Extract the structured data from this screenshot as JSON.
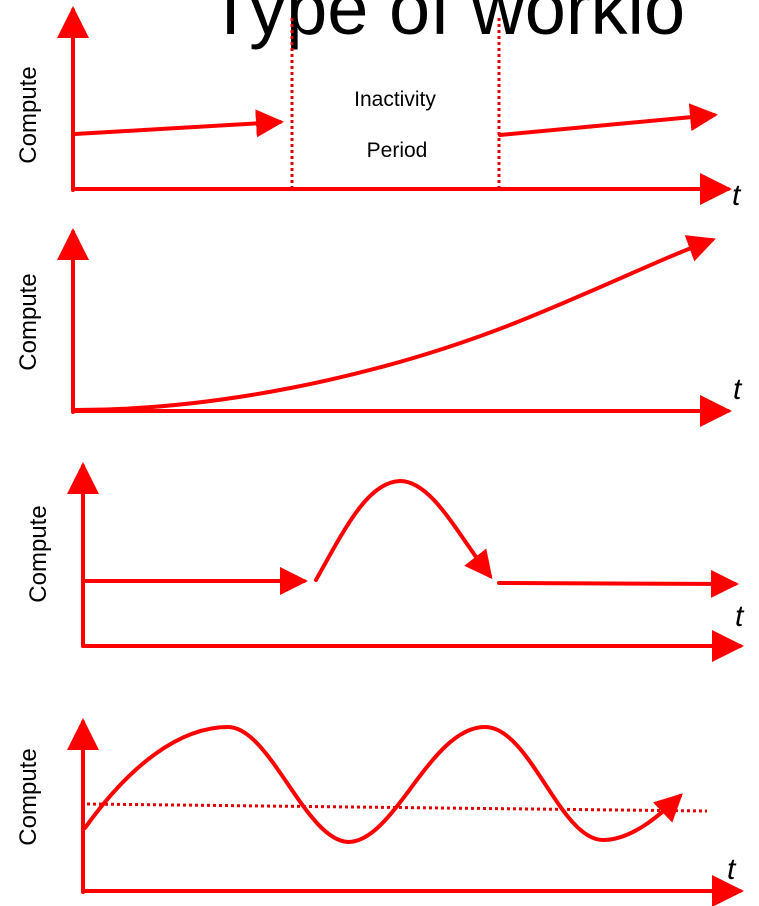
{
  "title": "Type of worklo",
  "colors": {
    "accent": "#ff0000",
    "text": "#000000",
    "background": "#ffffff"
  },
  "panels": [
    {
      "pattern": "on-off",
      "ylabel": "Compute",
      "xlabel": "t",
      "annotation": [
        "Inactivity",
        "Period"
      ]
    },
    {
      "pattern": "growing",
      "ylabel": "Compute",
      "xlabel": "t"
    },
    {
      "pattern": "once-in-a-lifetime burst",
      "ylabel": "Compute",
      "xlabel": "t"
    },
    {
      "pattern": "periodic / varying around average",
      "ylabel": "Compute",
      "xlabel": "t"
    }
  ]
}
